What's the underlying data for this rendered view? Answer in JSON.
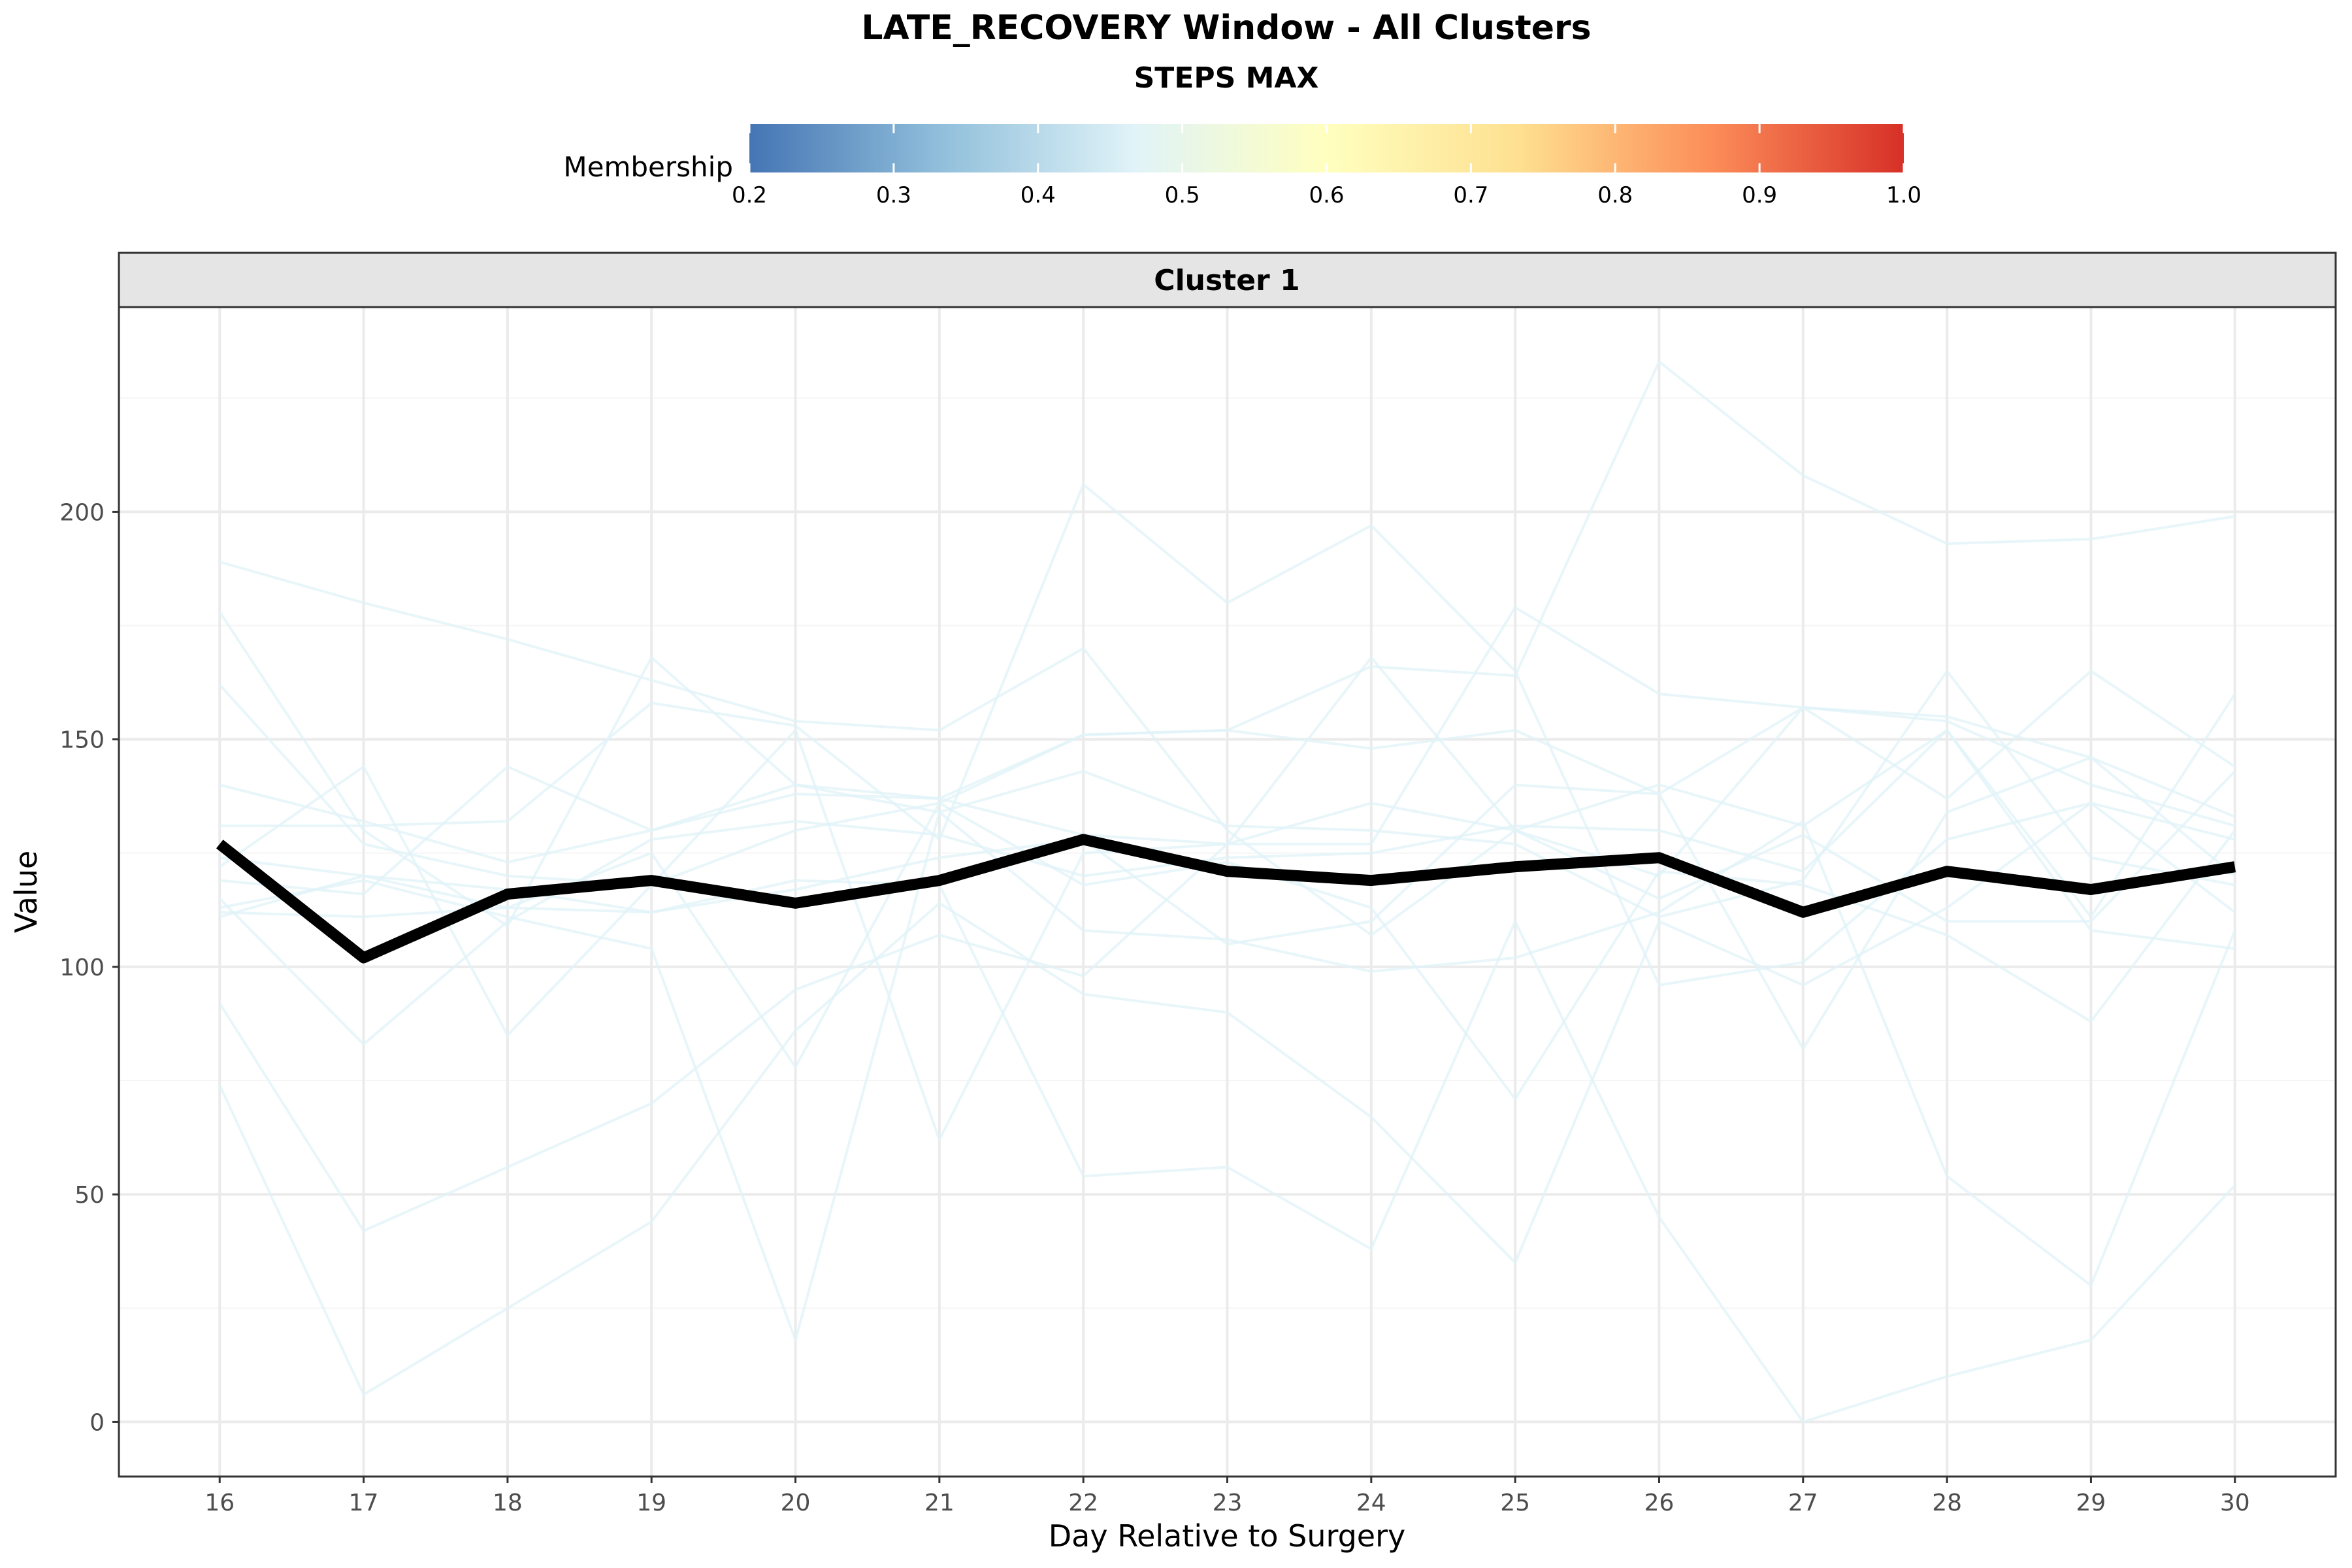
{
  "chart_data": {
    "type": "line",
    "title": "LATE_RECOVERY Window - All Clusters",
    "subtitle": "STEPS MAX",
    "panel_label": "Cluster 1",
    "xlabel": "Day Relative to Surgery",
    "ylabel": "Value",
    "x": [
      16,
      17,
      18,
      19,
      20,
      21,
      22,
      23,
      24,
      25,
      26,
      27,
      28,
      29,
      30
    ],
    "xlim": [
      15.3,
      30.7
    ],
    "ylim": [
      -12,
      245
    ],
    "yticks": [
      0,
      50,
      100,
      150,
      200
    ],
    "grid": true,
    "legend": {
      "title": "Membership",
      "placement": "top",
      "scale_min": 0.2,
      "scale_max": 1.0,
      "ticks": [
        "0.2",
        "0.3",
        "0.4",
        "0.5",
        "0.6",
        "0.7",
        "0.8",
        "0.9",
        "1.0"
      ],
      "colors": [
        "#4575b4",
        "#91bfdb",
        "#e0f3f8",
        "#ffffbf",
        "#fee090",
        "#fc8d59",
        "#d73027"
      ]
    },
    "centroid": {
      "color": "#000000",
      "values": [
        127,
        102,
        116,
        119,
        114,
        119,
        128,
        121,
        119,
        122,
        124,
        112,
        121,
        117,
        122
      ]
    },
    "member_color": "#e0f3f8",
    "member_series": [
      {
        "values": [
          189,
          180,
          172,
          163,
          154,
          152,
          170,
          130,
          107,
          130,
          120,
          157,
          154,
          140,
          131
        ]
      },
      {
        "values": [
          178,
          130,
          109,
          168,
          140,
          137,
          129,
          127,
          127,
          179,
          160,
          157,
          155,
          146,
          133
        ]
      },
      {
        "values": [
          162,
          127,
          120,
          118,
          130,
          136,
          151,
          152,
          148,
          152,
          138,
          157,
          137,
          165,
          144
        ]
      },
      {
        "values": [
          140,
          132,
          123,
          130,
          138,
          137,
          151,
          152,
          166,
          164,
          233,
          208,
          193,
          194,
          199
        ]
      },
      {
        "values": [
          131,
          131,
          132,
          158,
          153,
          128,
          206,
          180,
          197,
          165,
          96,
          101,
          128,
          136,
          128
        ]
      },
      {
        "values": [
          122,
          144,
          85,
          118,
          152,
          62,
          125,
          127,
          168,
          130,
          140,
          131,
          152,
          111,
          160
        ]
      },
      {
        "values": [
          119,
          116,
          144,
          130,
          140,
          134,
          143,
          131,
          130,
          127,
          111,
          119,
          165,
          124,
          118
        ]
      },
      {
        "values": [
          115,
          83,
          110,
          128,
          132,
          129,
          120,
          124,
          125,
          131,
          130,
          121,
          152,
          108,
          104
        ]
      },
      {
        "values": [
          112,
          111,
          113,
          112,
          117,
          124,
          128,
          105,
          110,
          140,
          138,
          82,
          134,
          146,
          120
        ]
      },
      {
        "values": [
          92,
          42,
          56,
          70,
          95,
          107,
          98,
          127,
          136,
          130,
          115,
          129,
          110,
          110,
          143
        ]
      },
      {
        "values": [
          74,
          6,
          25,
          44,
          86,
          114,
          94,
          90,
          67,
          35,
          110,
          96,
          113,
          136,
          112
        ]
      },
      {
        "values": [
          124,
          120,
          117,
          112,
          119,
          118,
          54,
          56,
          38,
          110,
          45,
          0,
          10,
          18,
          52
        ]
      },
      {
        "values": [
          113,
          119,
          111,
          104,
          18,
          134,
          108,
          106,
          99,
          102,
          112,
          132,
          54,
          30,
          108
        ]
      },
      {
        "values": [
          111,
          120,
          113,
          125,
          78,
          136,
          118,
          123,
          113,
          71,
          121,
          118,
          107,
          88,
          130
        ]
      }
    ]
  }
}
